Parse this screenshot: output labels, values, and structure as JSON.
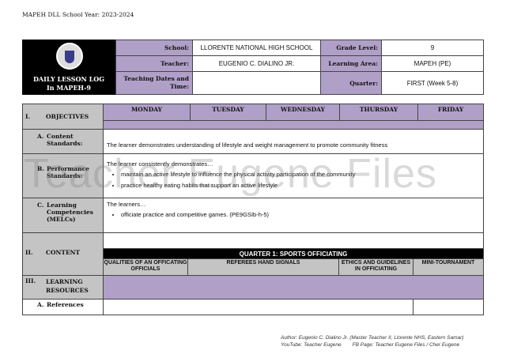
{
  "doc_title": "MAPEH DLL School Year: 2023-2024",
  "logo": {
    "title_line1": "DAILY LESSON LOG",
    "title_line2": "In MAPEH-9",
    "seal_text": "DepEd seal"
  },
  "header": {
    "school_label": "School:",
    "school": "LLORENTE NATIONAL HIGH SCHOOL",
    "grade_label": "Grade Level:",
    "grade": "9",
    "teacher_label": "Teacher:",
    "teacher": "EUGENIO C. DIALINO JR.",
    "area_label": "Learning Area:",
    "area": "MAPEH (PE)",
    "dates_label": "Teaching Dates and Time:",
    "dates": "",
    "quarter_label": "Quarter:",
    "quarter": "FIRST (Week 5-8)"
  },
  "days": [
    "MONDAY",
    "TUESDAY",
    "WEDNESDAY",
    "THURSDAY",
    "FRIDAY"
  ],
  "sections": {
    "objectives": {
      "num": "I.",
      "label": "OBJECTIVES"
    },
    "content_standards": {
      "num": "A.",
      "label": "Content Standards:",
      "text": "The learner demonstrates understanding of lifestyle and weight management to promote community fitness"
    },
    "performance_standards": {
      "num": "B.",
      "label": "Performance Standards:",
      "intro": "The learner consistently demonstrates…",
      "bullets": [
        "maintain an active lifestyle to influence the physical activity participation of the community",
        "practice healthy eating habits that support an active lifestyle"
      ]
    },
    "competencies": {
      "num": "C.",
      "label": "Learning Competencies (MELCs)",
      "intro": "The learners…",
      "bullets": [
        "officiate practice and competitive games. (PE9GSIb-h-5)"
      ]
    },
    "content": {
      "num": "II.",
      "label": "CONTENT",
      "quarter_title": "QUARTER 1: SPORTS OFFICIATING",
      "topics": [
        "QUALITIES OF AN OFFICATING OFFICIALS",
        "REFEREES HAND SIGNALS",
        "ETHICS AND GUIDELINES IN OFFICIATING",
        "MINI-TOURNAMENT"
      ]
    },
    "resources": {
      "num": "III.",
      "label": "LEARNING RESOURCES"
    },
    "references": {
      "num": "A.",
      "label": "References"
    }
  },
  "watermark": "Teacher Eugene Files",
  "footer": {
    "line1": "Author: Eugenio C. Dialino Jr. (Master Teacher II, Llorente NHS, Eastern Samar)",
    "youtube": "YouTube: Teacher Eugene",
    "fb": "FB Page: Teacher Eugene Files / Cher Eugene"
  }
}
